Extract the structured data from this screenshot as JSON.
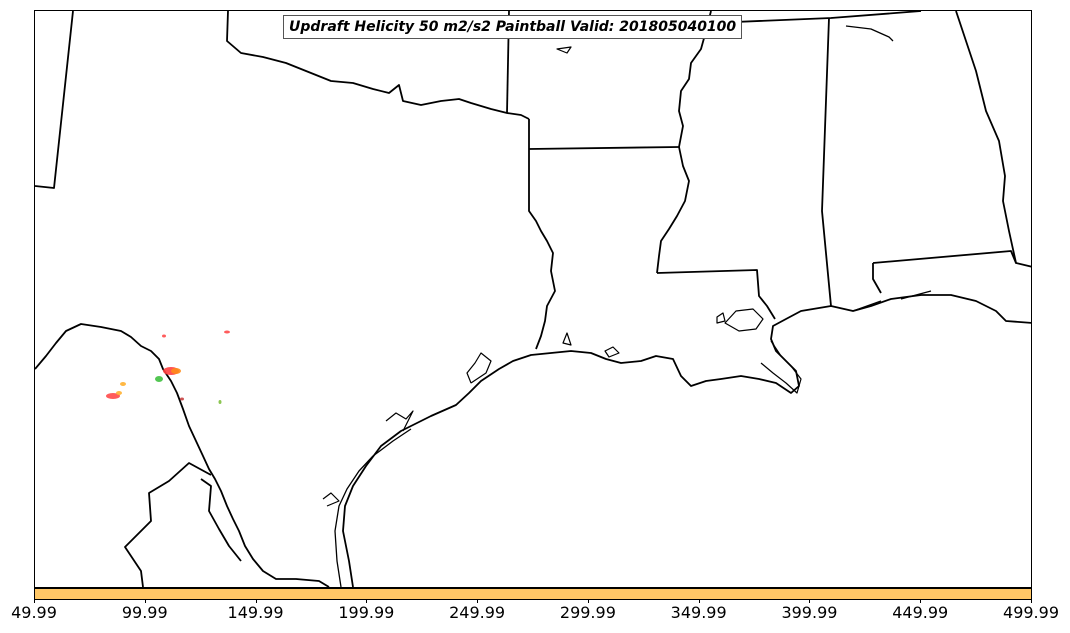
{
  "title": "Updraft Helicity 50 m2/s2 Paintball Valid: 201805040100",
  "colorbar": {
    "color": "#ffc766",
    "ticks": [
      "49.99",
      "99.99",
      "149.99",
      "199.99",
      "249.99",
      "299.99",
      "349.99",
      "399.99",
      "449.99",
      "499.99"
    ]
  },
  "paintball_colors": [
    "#ff4040",
    "#ff8c1a",
    "#ffb030",
    "#40c040",
    "#c84040"
  ]
}
